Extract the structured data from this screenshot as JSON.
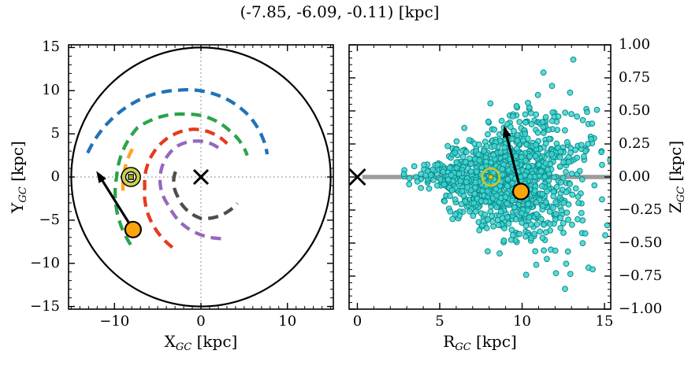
{
  "title": "(-7.85, -6.09, -0.11) [kpc]",
  "chart_data": [
    {
      "name": "galactic-plane-view",
      "type": "line",
      "title": "",
      "xlabel": {
        "base": "X",
        "sub": "GC",
        "unit": " [kpc]"
      },
      "ylabel": {
        "base": "Y",
        "sub": "GC",
        "unit": " [kpc]"
      },
      "xlim": [
        -15.31,
        15.31
      ],
      "ylim": [
        -15.31,
        15.31
      ],
      "xticks": [
        {
          "v": -10,
          "label": "−10"
        },
        {
          "v": 0,
          "label": "0"
        },
        {
          "v": 10,
          "label": "10"
        }
      ],
      "yticks": [
        {
          "v": 15,
          "label": "15"
        },
        {
          "v": 10,
          "label": "10"
        },
        {
          "v": 5,
          "label": "5"
        },
        {
          "v": 0,
          "label": "0"
        },
        {
          "v": -5,
          "label": "−5"
        },
        {
          "v": -10,
          "label": "−10"
        },
        {
          "v": -15,
          "label": "−15"
        }
      ],
      "xminor": 1,
      "yminor": 1,
      "grid": false,
      "crosshair": {
        "x": 0,
        "y": 0,
        "style": "dotted",
        "color": "#8f8f8f"
      },
      "boundary_circle": {
        "center": [
          0,
          0
        ],
        "r": 15,
        "color": "#000000"
      },
      "spiral_arms": [
        {
          "name": "spiral-arm-blue",
          "color": "#2272b6",
          "theta_r_points": [
            [
              168,
              13.4
            ],
            [
              105,
              10.4
            ],
            [
              52,
              9.0
            ],
            [
              19,
              8.1
            ]
          ]
        },
        {
          "name": "spiral-arm-green",
          "color": "#2aa44a",
          "theta_r_points": [
            [
              224,
              11.3
            ],
            [
              180,
              9.75
            ],
            [
              142,
              9.3
            ],
            [
              104,
              7.5
            ],
            [
              58,
              6.3
            ],
            [
              25,
              5.9
            ]
          ]
        },
        {
          "name": "spiral-arm-local-orange",
          "color": "#ffa320",
          "theta_r_points": [
            [
              190,
              9.15
            ],
            [
              154,
              8.5
            ]
          ]
        },
        {
          "name": "spiral-arm-red",
          "color": "#e63a1d",
          "theta_r_points": [
            [
              248,
              8.8
            ],
            [
              190,
              6.6
            ],
            [
              99,
              5.6
            ],
            [
              52,
              4.9
            ]
          ]
        },
        {
          "name": "spiral-arm-purple",
          "color": "#9668bd",
          "theta_r_points": [
            [
              288,
              7.5
            ],
            [
              223,
              5.0
            ],
            [
              177,
              4.7
            ],
            [
              127,
              4.5
            ],
            [
              98,
              4.2
            ],
            [
              54,
              3.9
            ]
          ]
        },
        {
          "name": "spiral-arm-inner-gray",
          "color": "#4d4d4d",
          "theta_r_points": [
            [
              168,
              3.0
            ],
            [
              219,
              3.5
            ],
            [
              270,
              4.8
            ],
            [
              324,
              5.2
            ]
          ]
        }
      ],
      "markers": {
        "galactic_center": {
          "x": 0,
          "y": 0,
          "symbol": "x-cross",
          "color": "#000000"
        },
        "sun": {
          "x": -8.1,
          "y": 0,
          "symbol": "circled-dot",
          "ring_color": "#cdd130",
          "dot_color": "#a9af14"
        },
        "star": {
          "x": -7.85,
          "y": -6.09,
          "symbol": "filled-circle",
          "color": "#ffa30d"
        },
        "velocity_arrow": {
          "x1": -7.85,
          "y1": -6.09,
          "x2": -12.1,
          "y2": 0.7,
          "color": "#000000"
        }
      }
    },
    {
      "name": "radius-height-view",
      "type": "scatter",
      "title": "",
      "xlabel": {
        "base": "R",
        "sub": "GC",
        "unit": " [kpc]"
      },
      "ylabel": {
        "base": "Z",
        "sub": "GC",
        "unit": " [kpc]"
      },
      "xlim": [
        -0.5,
        15.38
      ],
      "ylim": [
        -1.0,
        1.0
      ],
      "xticks": [
        {
          "v": 0,
          "label": "0"
        },
        {
          "v": 5,
          "label": "5"
        },
        {
          "v": 10,
          "label": "10"
        },
        {
          "v": 15,
          "label": "15"
        }
      ],
      "yticks": [
        {
          "v": 1.0,
          "label": "1.00"
        },
        {
          "v": 0.75,
          "label": "0.75"
        },
        {
          "v": 0.5,
          "label": "0.50"
        },
        {
          "v": 0.25,
          "label": "0.25"
        },
        {
          "v": 0,
          "label": "0.00"
        },
        {
          "v": -0.25,
          "label": "−0.25"
        },
        {
          "v": -0.5,
          "label": "−0.50"
        },
        {
          "v": -0.75,
          "label": "−0.75"
        },
        {
          "v": -1.0,
          "label": "−1.00"
        }
      ],
      "xminor": 1,
      "yminor": 0.05,
      "grid": false,
      "midplane_line": {
        "y": 0,
        "x1": 0.3,
        "x2": 15.38,
        "color": "#9c9c9c",
        "width": 5.5
      },
      "scatter": {
        "description": "cloud of sample stars; vertical spread grows with galactocentric radius",
        "marker_color": "#3fd5d0",
        "marker_edge": "#0d8d8d",
        "n": 1200,
        "seed": 11,
        "r_mean": 9.0,
        "r_sd": 2.3,
        "r_min": 1.4,
        "r_max": 15.45,
        "z_sd_base": 0.02,
        "z_sd_slope": 0.028,
        "z_sd_ref": 2.5,
        "z_max": 1.02
      },
      "markers": {
        "galactic_center": {
          "x": 0,
          "y": 0,
          "symbol": "x-cross",
          "color": "#000000"
        },
        "sun": {
          "x": 8.1,
          "y": 0,
          "symbol": "circled-dot",
          "ring_color": "#cdc32c",
          "dot_color": "#cdd130"
        },
        "star": {
          "x": 9.93,
          "y": -0.11,
          "symbol": "filled-circle",
          "color": "#ffa30d"
        },
        "velocity_arrow": {
          "x1": 9.93,
          "y1": -0.11,
          "x2": 8.9,
          "y2": 0.39,
          "color": "#000000"
        }
      }
    }
  ]
}
